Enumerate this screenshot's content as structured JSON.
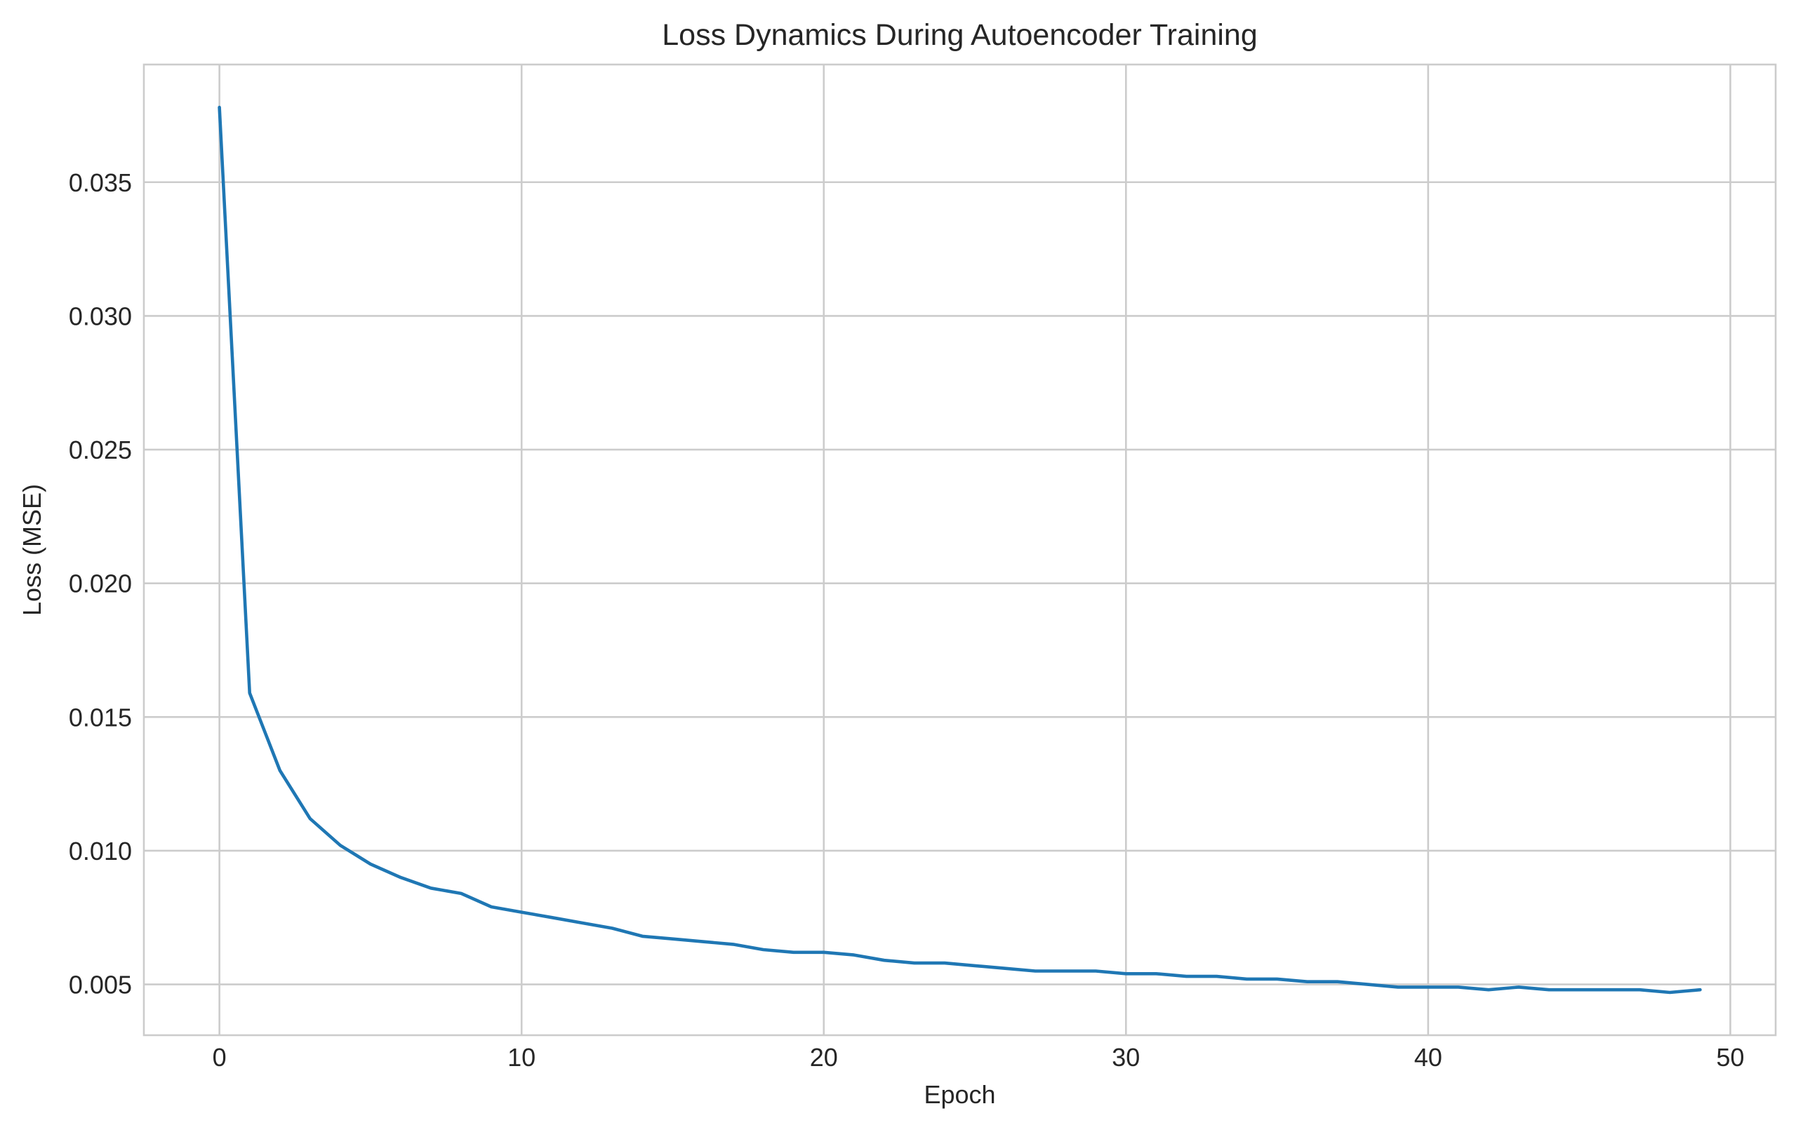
{
  "chart_data": {
    "type": "line",
    "title": "Loss Dynamics During Autoencoder Training",
    "xlabel": "Epoch",
    "ylabel": "Loss (MSE)",
    "xlim": [
      -2.5,
      51.5
    ],
    "ylim": [
      0.0031,
      0.0394
    ],
    "xticks": [
      0,
      10,
      20,
      30,
      40,
      50
    ],
    "xtick_labels": [
      "0",
      "10",
      "20",
      "30",
      "40",
      "50"
    ],
    "yticks": [
      0.005,
      0.01,
      0.015,
      0.02,
      0.025,
      0.03,
      0.035
    ],
    "ytick_labels": [
      "0.005",
      "0.010",
      "0.015",
      "0.020",
      "0.025",
      "0.030",
      "0.035"
    ],
    "grid": true,
    "series": [
      {
        "color": "#1f77b4",
        "x": [
          0,
          1,
          2,
          3,
          4,
          5,
          6,
          7,
          8,
          9,
          10,
          11,
          12,
          13,
          14,
          15,
          16,
          17,
          18,
          19,
          20,
          21,
          22,
          23,
          24,
          25,
          26,
          27,
          28,
          29,
          30,
          31,
          32,
          33,
          34,
          35,
          36,
          37,
          38,
          39,
          40,
          41,
          42,
          43,
          44,
          45,
          46,
          47,
          48,
          49
        ],
        "y": [
          0.0378,
          0.0159,
          0.013,
          0.0112,
          0.0102,
          0.0095,
          0.009,
          0.0086,
          0.0084,
          0.0079,
          0.0077,
          0.0075,
          0.0073,
          0.0071,
          0.0068,
          0.0067,
          0.0066,
          0.0065,
          0.0063,
          0.0062,
          0.0062,
          0.0061,
          0.0059,
          0.0058,
          0.0058,
          0.0057,
          0.0056,
          0.0055,
          0.0055,
          0.0055,
          0.0054,
          0.0054,
          0.0053,
          0.0053,
          0.0052,
          0.0052,
          0.0051,
          0.0051,
          0.005,
          0.0049,
          0.0049,
          0.0049,
          0.0048,
          0.0049,
          0.0048,
          0.0048,
          0.0048,
          0.0048,
          0.0047,
          0.0048
        ]
      }
    ]
  }
}
